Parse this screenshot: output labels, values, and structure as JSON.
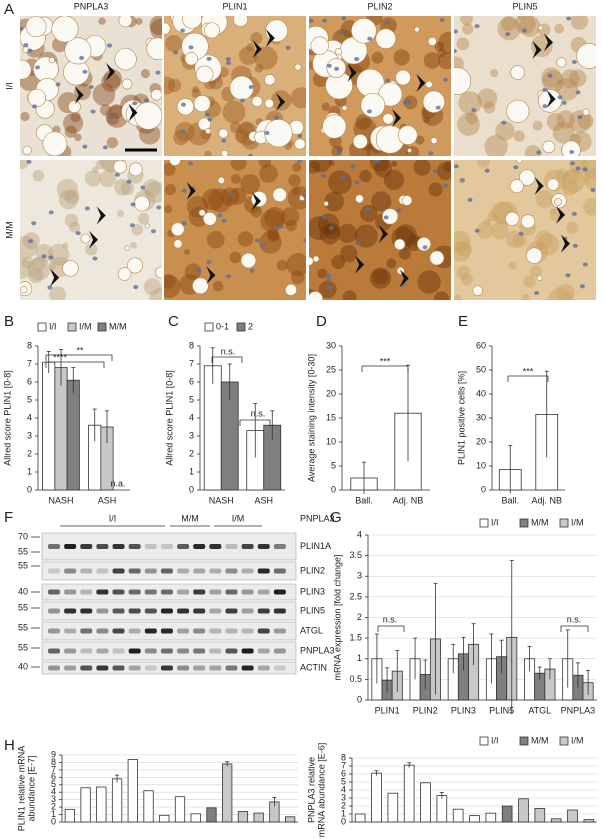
{
  "panel_a": {
    "letter": "A",
    "columns": [
      "PNPLA3",
      "PLIN1",
      "PLIN2",
      "PLIN5"
    ],
    "rows": [
      "I/I",
      "M/M"
    ]
  },
  "panel_f": {
    "letter": "F",
    "groups": [
      "I/I",
      "M/M",
      "I/M"
    ],
    "gene": "PNPLA3",
    "proteins": [
      "PLIN1A",
      "PLIN2",
      "PLIN3",
      "PLIN5",
      "ATGL",
      "PNPLA3",
      "ACTIN"
    ],
    "markers": [
      "70",
      "55",
      "55",
      "40",
      "55",
      "55",
      "55",
      "40"
    ]
  },
  "chart_data": [
    {
      "type": "bar",
      "letter": "B",
      "ylabel": "Allred score PLIN1 [0-8]",
      "categories": [
        "NASH",
        "ASH"
      ],
      "series": [
        {
          "name": "I/I",
          "color": "#ffffff",
          "values": [
            7.1,
            3.6
          ],
          "errors": [
            0.6,
            0.9
          ]
        },
        {
          "name": "I/M",
          "color": "#c8c8c8",
          "values": [
            6.8,
            3.5
          ],
          "errors": [
            1.0,
            0.9
          ]
        },
        {
          "name": "M/M",
          "color": "#7f7f7f",
          "values": [
            6.1,
            null
          ],
          "errors": [
            0.7,
            null
          ]
        }
      ],
      "ylim": [
        0,
        8
      ],
      "yticks": [
        0,
        1,
        2,
        3,
        4,
        5,
        6,
        7,
        8
      ],
      "annotations": [
        "****",
        "**",
        "n.a."
      ]
    },
    {
      "type": "bar",
      "letter": "C",
      "ylabel": "Allred score PLIN1 [0-8]",
      "categories": [
        "NASH",
        "ASH"
      ],
      "series": [
        {
          "name": "0-1",
          "color": "#ffffff",
          "values": [
            6.9,
            3.3
          ],
          "errors": [
            1.0,
            1.5
          ]
        },
        {
          "name": "2",
          "color": "#7f7f7f",
          "values": [
            6.0,
            3.6
          ],
          "errors": [
            1.0,
            0.8
          ]
        }
      ],
      "ylim": [
        0,
        8
      ],
      "yticks": [
        0,
        1,
        2,
        3,
        4,
        5,
        6,
        7,
        8
      ],
      "annotations": [
        "n.s.",
        "n.s."
      ]
    },
    {
      "type": "bar",
      "letter": "D",
      "ylabel": "Average staining intensity [0-30]",
      "categories": [
        "Ball.",
        "Adj. NB"
      ],
      "values": [
        2.5,
        16
      ],
      "errors": [
        3.3,
        10
      ],
      "color": "#ffffff",
      "ylim": [
        0,
        30
      ],
      "yticks": [
        0,
        5,
        10,
        15,
        20,
        25,
        30
      ],
      "annotations": [
        "***"
      ]
    },
    {
      "type": "bar",
      "letter": "E",
      "ylabel": "PLIN1 positive cells [%]",
      "categories": [
        "Ball.",
        "Adj. NB"
      ],
      "values": [
        8.5,
        31.5
      ],
      "errors": [
        10,
        18
      ],
      "color": "#ffffff",
      "ylim": [
        0,
        60
      ],
      "yticks": [
        0,
        10,
        20,
        30,
        40,
        50,
        60
      ],
      "annotations": [
        "***"
      ]
    },
    {
      "type": "bar",
      "letter": "G",
      "ylabel": "mRNA expression [fold change]",
      "categories": [
        "PLIN1",
        "PLIN2",
        "PLIN3",
        "PLIN5",
        "ATGL",
        "PNPLA3"
      ],
      "series": [
        {
          "name": "I/I",
          "color": "#ffffff",
          "values": [
            1,
            1,
            1,
            1,
            1,
            1
          ],
          "errors": [
            0.6,
            0.5,
            0.35,
            0.6,
            0.3,
            0.7
          ]
        },
        {
          "name": "M/M",
          "color": "#7f7f7f",
          "values": [
            0.48,
            0.62,
            1.12,
            1.05,
            0.65,
            0.6
          ],
          "errors": [
            0.3,
            0.35,
            0.4,
            0.4,
            0.15,
            0.3
          ]
        },
        {
          "name": "I/M",
          "color": "#c8c8c8",
          "values": [
            0.7,
            1.48,
            1.35,
            1.52,
            0.75,
            0.42
          ],
          "errors": [
            0.5,
            1.35,
            0.5,
            1.86,
            0.25,
            0.3
          ]
        }
      ],
      "ylim": [
        0,
        4
      ],
      "yticks": [
        0,
        0.5,
        1,
        1.5,
        2,
        2.5,
        3,
        3.5,
        4
      ],
      "grid": true,
      "annotations": [
        "n.s.",
        "n.s."
      ]
    },
    {
      "type": "bar",
      "letter": "H",
      "ylabel": [
        "PLIN1 relative mRNA",
        "abundance [E-7]"
      ],
      "categories": [
        null,
        null,
        null,
        null,
        null,
        null,
        null,
        null,
        null,
        null,
        null,
        null,
        null,
        null,
        null
      ],
      "series": [
        {
          "color": "#ffffff",
          "values": [
            1.7,
            4.6,
            4.7,
            5.8,
            8.4,
            4.2,
            0.9,
            3.4,
            1.1,
            null,
            null,
            null,
            null,
            null,
            null
          ],
          "errors": [
            null,
            null,
            null,
            0.5,
            null,
            null,
            null,
            null,
            null,
            null,
            null,
            null,
            null,
            null,
            null
          ]
        },
        {
          "color": "#7f7f7f",
          "values": [
            null,
            null,
            null,
            null,
            null,
            null,
            null,
            null,
            null,
            1.9,
            null,
            null,
            null,
            null,
            null
          ],
          "errors": [
            null,
            null,
            null,
            null,
            null,
            null,
            null,
            null,
            null,
            null,
            null,
            null,
            null,
            null,
            null
          ]
        },
        {
          "color": "#c8c8c8",
          "values": [
            null,
            null,
            null,
            null,
            null,
            null,
            null,
            null,
            null,
            null,
            7.8,
            1.4,
            1.2,
            2.7,
            0.7
          ],
          "errors": [
            null,
            null,
            null,
            null,
            null,
            null,
            null,
            null,
            null,
            null,
            0.3,
            null,
            null,
            0.6,
            null
          ]
        }
      ],
      "ylim": [
        0,
        9
      ],
      "yticks": [
        0,
        1,
        2,
        3,
        4,
        5,
        6,
        7,
        8,
        9
      ],
      "grid": true
    },
    {
      "type": "bar",
      "ylabel": [
        "PNPLA3 relative",
        "mRNA abundance [E-6]"
      ],
      "categories": [
        null,
        null,
        null,
        null,
        null,
        null,
        null,
        null,
        null,
        null,
        null,
        null,
        null,
        null,
        null
      ],
      "series": [
        {
          "name": "I/I",
          "color": "#ffffff",
          "values": [
            1.0,
            6.1,
            3.6,
            7.1,
            4.9,
            3.3,
            1.6,
            0.8,
            1.1,
            null,
            null,
            null,
            null,
            null,
            null
          ],
          "errors": [
            null,
            0.3,
            null,
            0.3,
            null,
            0.4,
            null,
            null,
            null,
            null,
            null,
            null,
            null,
            null,
            null
          ]
        },
        {
          "name": "M/M",
          "color": "#7f7f7f",
          "values": [
            null,
            null,
            null,
            null,
            null,
            null,
            null,
            null,
            null,
            2.0,
            null,
            null,
            null,
            null,
            null
          ],
          "errors": [
            null,
            null,
            null,
            null,
            null,
            null,
            null,
            null,
            null,
            null,
            null,
            null,
            null,
            null,
            null
          ]
        },
        {
          "name": "I/M",
          "color": "#c8c8c8",
          "values": [
            null,
            null,
            null,
            null,
            null,
            null,
            null,
            null,
            null,
            null,
            2.9,
            1.7,
            0.4,
            1.5,
            0.3
          ],
          "errors": [
            null,
            null,
            null,
            null,
            null,
            null,
            null,
            null,
            null,
            null,
            null,
            null,
            null,
            null,
            null
          ]
        }
      ],
      "ylim": [
        0,
        8
      ],
      "yticks": [
        0,
        1,
        2,
        3,
        4,
        5,
        6,
        7,
        8
      ],
      "grid": true
    }
  ]
}
